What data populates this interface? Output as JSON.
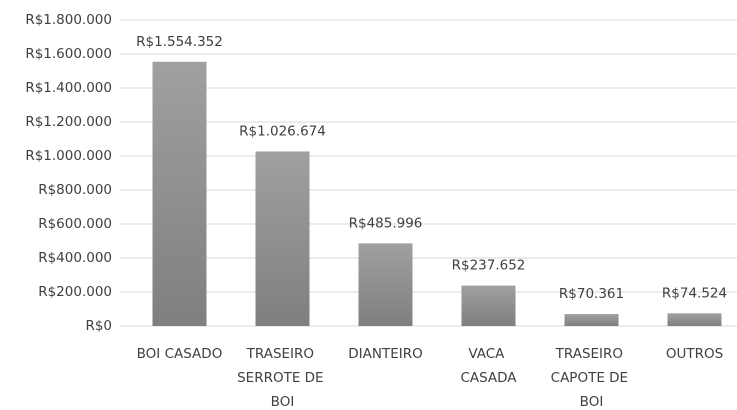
{
  "chart_data": {
    "type": "bar",
    "categories": [
      "BOI CASADO",
      "TRASEIRO SERROTE DE BOI",
      "DIANTEIRO",
      "VACA CASADA",
      "TRASEIRO CAPOTE DE BOI",
      "OUTROS"
    ],
    "values": [
      1554352,
      1026674,
      485996,
      237652,
      70361,
      74524
    ],
    "value_labels": [
      "R$1.554.352",
      "R$1.026.674",
      "R$485.996",
      "R$237.652",
      "R$70.361",
      "R$74.524"
    ],
    "color": "#a0a0a0",
    "ylim": [
      0,
      1800000
    ],
    "yticks": [
      {
        "value": 0,
        "label": "R$0"
      },
      {
        "value": 200000,
        "label": "R$200.000"
      },
      {
        "value": 400000,
        "label": "R$400.000"
      },
      {
        "value": 600000,
        "label": "R$600.000"
      },
      {
        "value": 800000,
        "label": "R$800.000"
      },
      {
        "value": 1000000,
        "label": "R$1.000.000"
      },
      {
        "value": 1200000,
        "label": "R$1.200.000"
      },
      {
        "value": 1400000,
        "label": "R$1.400.000"
      },
      {
        "value": 1600000,
        "label": "R$1.600.000"
      },
      {
        "value": 1800000,
        "label": "R$1.800.000"
      }
    ],
    "grid": true
  }
}
